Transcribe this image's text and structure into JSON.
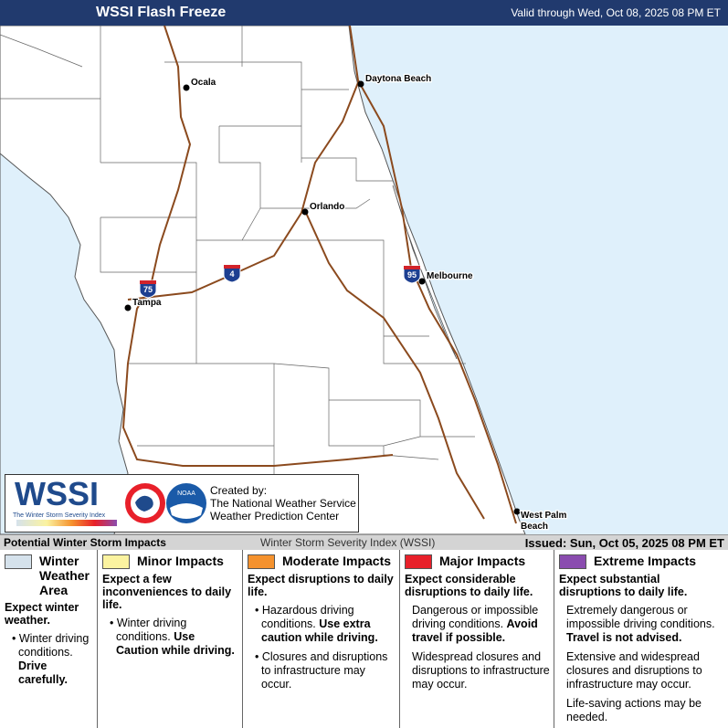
{
  "header": {
    "title": "WSSI Flash Freeze",
    "valid": "Valid through Wed, Oct 08, 2025 08 PM ET"
  },
  "map": {
    "cities": [
      "Ocala",
      "Daytona Beach",
      "Orlando",
      "Melbourne",
      "Tampa"
    ],
    "city_two_line": [
      "West Palm",
      "Beach"
    ],
    "shields": [
      "75",
      "4",
      "95"
    ]
  },
  "credit": {
    "logo": "WSSI",
    "logo_subtitle": "The Winter Storm Severity Index",
    "noaa": "NOAA",
    "lines": [
      "Created by:",
      "The National Weather Service",
      "Weather Prediction Center"
    ]
  },
  "legend_bar": {
    "left": "Potential Winter Storm Impacts",
    "center": "Winter Storm Severity Index (WSSI)",
    "right": "Issued: Sun, Oct 05, 2025 08 PM ET"
  },
  "columns": [
    {
      "title": "Winter Weather Area",
      "color": "#d5e2ec",
      "summary": "Expect winter weather.",
      "bullet_marks": true,
      "bullets": [
        {
          "text": "Winter driving conditions.",
          "bold": "Drive carefully."
        }
      ]
    },
    {
      "title": "Minor Impacts",
      "color": "#fbf3a0",
      "summary": "Expect a few inconveniences to daily life.",
      "bullet_marks": true,
      "bullets": [
        {
          "text": "Winter driving conditions.",
          "bold": "Use Caution while driving."
        }
      ]
    },
    {
      "title": "Moderate Impacts",
      "color": "#f5922e",
      "summary": "Expect disruptions to daily life.",
      "bullet_marks": true,
      "bullets": [
        {
          "text": "Hazardous driving conditions.",
          "bold": "Use extra caution while driving."
        },
        {
          "text": "Closures and disruptions to infrastructure may occur."
        }
      ]
    },
    {
      "title": "Major Impacts",
      "color": "#e8202a",
      "summary": "Expect considerable disruptions to daily life.",
      "bullet_marks": false,
      "bullets": [
        {
          "text": "Dangerous or impossible driving conditions.",
          "bold": "Avoid travel if possible."
        },
        {
          "text": "Widespread closures and disruptions to infrastructure may occur."
        }
      ]
    },
    {
      "title": "Extreme Impacts",
      "color": "#8a4caf",
      "summary": "Expect substantial disruptions to daily life.",
      "bullet_marks": false,
      "bullets": [
        {
          "text": "Extremely dangerous or impossible driving conditions.",
          "bold": "Travel is not advised."
        },
        {
          "text": "Extensive and widespread closures and disruptions to infrastructure may occur."
        },
        {
          "text": "Life-saving actions may be needed."
        }
      ]
    }
  ]
}
